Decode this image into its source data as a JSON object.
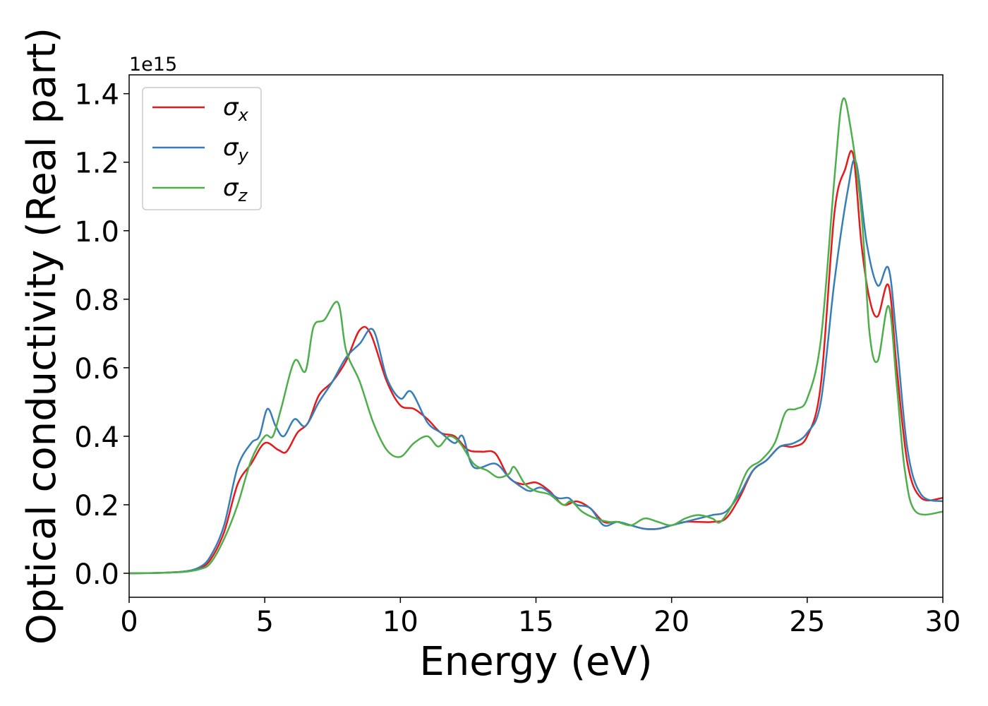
{
  "chart_data": {
    "type": "line",
    "xlabel": "Energy (eV)",
    "ylabel": "Optical conductivity (Real part)",
    "y_offset_text": "1e15",
    "xlim": [
      0,
      30
    ],
    "ylim": [
      -0.07,
      1.455
    ],
    "x_ticks": [
      0,
      5,
      10,
      15,
      20,
      25,
      30
    ],
    "x_tick_labels": [
      "0",
      "5",
      "10",
      "15",
      "20",
      "25",
      "30"
    ],
    "y_ticks": [
      0.0,
      0.2,
      0.4,
      0.6,
      0.8,
      1.0,
      1.2,
      1.4
    ],
    "y_tick_labels": [
      "0.0",
      "0.2",
      "0.4",
      "0.6",
      "0.8",
      "1.0",
      "1.2",
      "1.4"
    ],
    "grid": false,
    "legend_position": "top-left",
    "series": [
      {
        "name": "σx",
        "base": "σ",
        "sub": "x",
        "color": "#e41a1c",
        "points": [
          [
            0,
            0
          ],
          [
            1,
            0.001
          ],
          [
            2,
            0.005
          ],
          [
            2.6,
            0.015
          ],
          [
            3.0,
            0.04
          ],
          [
            3.5,
            0.12
          ],
          [
            4.0,
            0.26
          ],
          [
            4.5,
            0.32
          ],
          [
            5.0,
            0.38
          ],
          [
            5.5,
            0.36
          ],
          [
            5.8,
            0.355
          ],
          [
            6.2,
            0.41
          ],
          [
            6.6,
            0.44
          ],
          [
            7.0,
            0.52
          ],
          [
            7.5,
            0.56
          ],
          [
            8.0,
            0.62
          ],
          [
            8.5,
            0.71
          ],
          [
            8.9,
            0.7
          ],
          [
            9.5,
            0.56
          ],
          [
            10.0,
            0.49
          ],
          [
            10.5,
            0.48
          ],
          [
            11.0,
            0.45
          ],
          [
            11.5,
            0.41
          ],
          [
            12.0,
            0.4
          ],
          [
            12.5,
            0.36
          ],
          [
            13.0,
            0.355
          ],
          [
            13.5,
            0.35
          ],
          [
            14.0,
            0.28
          ],
          [
            14.5,
            0.26
          ],
          [
            15.0,
            0.265
          ],
          [
            15.5,
            0.24
          ],
          [
            16.0,
            0.2
          ],
          [
            16.5,
            0.21
          ],
          [
            17.0,
            0.19
          ],
          [
            17.5,
            0.15
          ],
          [
            18.0,
            0.15
          ],
          [
            18.5,
            0.14
          ],
          [
            19.0,
            0.13
          ],
          [
            19.5,
            0.13
          ],
          [
            20.0,
            0.14
          ],
          [
            20.5,
            0.15
          ],
          [
            21.0,
            0.15
          ],
          [
            21.5,
            0.15
          ],
          [
            22.0,
            0.16
          ],
          [
            22.5,
            0.22
          ],
          [
            23.0,
            0.3
          ],
          [
            23.5,
            0.33
          ],
          [
            24.0,
            0.37
          ],
          [
            24.5,
            0.37
          ],
          [
            25.0,
            0.4
          ],
          [
            25.5,
            0.55
          ],
          [
            26.0,
            1.05
          ],
          [
            26.4,
            1.18
          ],
          [
            26.7,
            1.22
          ],
          [
            27.0,
            0.96
          ],
          [
            27.3,
            0.8
          ],
          [
            27.6,
            0.75
          ],
          [
            28.0,
            0.84
          ],
          [
            28.3,
            0.6
          ],
          [
            28.7,
            0.32
          ],
          [
            29.2,
            0.22
          ],
          [
            30.0,
            0.22
          ]
        ]
      },
      {
        "name": "σy",
        "base": "σ",
        "sub": "y",
        "color": "#377eb8",
        "points": [
          [
            0,
            0
          ],
          [
            1,
            0.001
          ],
          [
            2,
            0.005
          ],
          [
            2.6,
            0.018
          ],
          [
            3.0,
            0.05
          ],
          [
            3.5,
            0.14
          ],
          [
            4.0,
            0.31
          ],
          [
            4.5,
            0.38
          ],
          [
            4.8,
            0.4
          ],
          [
            5.1,
            0.48
          ],
          [
            5.4,
            0.43
          ],
          [
            5.7,
            0.4
          ],
          [
            6.1,
            0.45
          ],
          [
            6.5,
            0.43
          ],
          [
            7.0,
            0.5
          ],
          [
            7.5,
            0.56
          ],
          [
            8.0,
            0.63
          ],
          [
            8.5,
            0.67
          ],
          [
            9.0,
            0.71
          ],
          [
            9.5,
            0.57
          ],
          [
            10.0,
            0.51
          ],
          [
            10.4,
            0.53
          ],
          [
            11.0,
            0.44
          ],
          [
            11.5,
            0.41
          ],
          [
            12.0,
            0.38
          ],
          [
            12.3,
            0.4
          ],
          [
            12.7,
            0.31
          ],
          [
            13.5,
            0.32
          ],
          [
            14.0,
            0.28
          ],
          [
            14.5,
            0.25
          ],
          [
            14.8,
            0.24
          ],
          [
            15.2,
            0.25
          ],
          [
            15.8,
            0.22
          ],
          [
            16.2,
            0.22
          ],
          [
            16.5,
            0.2
          ],
          [
            17.0,
            0.19
          ],
          [
            17.5,
            0.14
          ],
          [
            18.0,
            0.15
          ],
          [
            18.5,
            0.14
          ],
          [
            19.0,
            0.13
          ],
          [
            19.5,
            0.13
          ],
          [
            20.0,
            0.14
          ],
          [
            20.5,
            0.15
          ],
          [
            21.0,
            0.16
          ],
          [
            21.5,
            0.17
          ],
          [
            22.0,
            0.18
          ],
          [
            22.5,
            0.23
          ],
          [
            23.0,
            0.3
          ],
          [
            23.5,
            0.33
          ],
          [
            24.0,
            0.37
          ],
          [
            24.5,
            0.38
          ],
          [
            25.0,
            0.41
          ],
          [
            25.5,
            0.5
          ],
          [
            26.0,
            0.85
          ],
          [
            26.5,
            1.12
          ],
          [
            26.8,
            1.2
          ],
          [
            27.2,
            0.96
          ],
          [
            27.6,
            0.84
          ],
          [
            28.0,
            0.89
          ],
          [
            28.3,
            0.68
          ],
          [
            28.7,
            0.36
          ],
          [
            29.2,
            0.23
          ],
          [
            30.0,
            0.21
          ]
        ]
      },
      {
        "name": "σz",
        "base": "σ",
        "sub": "z",
        "color": "#4daf4a",
        "points": [
          [
            0,
            0
          ],
          [
            1,
            0.001
          ],
          [
            2,
            0.004
          ],
          [
            2.6,
            0.012
          ],
          [
            3.0,
            0.03
          ],
          [
            3.5,
            0.1
          ],
          [
            4.0,
            0.2
          ],
          [
            4.5,
            0.33
          ],
          [
            5.0,
            0.4
          ],
          [
            5.3,
            0.4
          ],
          [
            5.6,
            0.48
          ],
          [
            6.1,
            0.62
          ],
          [
            6.5,
            0.59
          ],
          [
            6.8,
            0.72
          ],
          [
            7.2,
            0.74
          ],
          [
            7.7,
            0.79
          ],
          [
            8.0,
            0.65
          ],
          [
            8.5,
            0.56
          ],
          [
            9.0,
            0.44
          ],
          [
            9.5,
            0.36
          ],
          [
            10.0,
            0.34
          ],
          [
            10.5,
            0.38
          ],
          [
            11.0,
            0.4
          ],
          [
            11.4,
            0.37
          ],
          [
            11.8,
            0.4
          ],
          [
            12.2,
            0.38
          ],
          [
            12.7,
            0.32
          ],
          [
            13.2,
            0.3
          ],
          [
            13.6,
            0.28
          ],
          [
            14.0,
            0.29
          ],
          [
            14.2,
            0.31
          ],
          [
            14.6,
            0.26
          ],
          [
            15.0,
            0.24
          ],
          [
            15.5,
            0.23
          ],
          [
            16.0,
            0.2
          ],
          [
            16.3,
            0.21
          ],
          [
            16.7,
            0.18
          ],
          [
            17.2,
            0.16
          ],
          [
            17.7,
            0.15
          ],
          [
            18.0,
            0.15
          ],
          [
            18.5,
            0.14
          ],
          [
            19.0,
            0.16
          ],
          [
            19.5,
            0.15
          ],
          [
            20.0,
            0.14
          ],
          [
            20.5,
            0.16
          ],
          [
            21.0,
            0.17
          ],
          [
            21.5,
            0.16
          ],
          [
            21.8,
            0.15
          ],
          [
            22.3,
            0.21
          ],
          [
            22.8,
            0.3
          ],
          [
            23.3,
            0.33
          ],
          [
            23.8,
            0.38
          ],
          [
            24.2,
            0.47
          ],
          [
            24.6,
            0.48
          ],
          [
            25.0,
            0.51
          ],
          [
            25.5,
            0.68
          ],
          [
            26.0,
            1.15
          ],
          [
            26.3,
            1.38
          ],
          [
            26.6,
            1.3
          ],
          [
            27.0,
            1.05
          ],
          [
            27.3,
            0.7
          ],
          [
            27.6,
            0.62
          ],
          [
            28.0,
            0.78
          ],
          [
            28.3,
            0.55
          ],
          [
            28.6,
            0.3
          ],
          [
            29.0,
            0.18
          ],
          [
            30.0,
            0.18
          ]
        ]
      }
    ]
  }
}
